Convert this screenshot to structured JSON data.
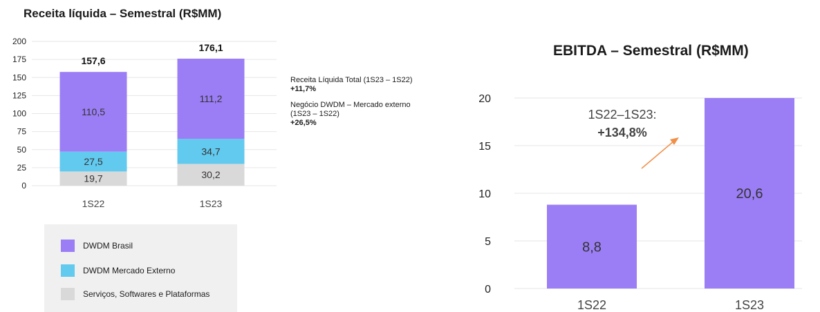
{
  "chart_data": [
    {
      "type": "bar",
      "stacked": true,
      "title": "Receita líquida – Semestral (R$MM)",
      "categories": [
        "1S22",
        "1S23"
      ],
      "series": [
        {
          "name": "Serviços, Softwares e Plataformas",
          "values": [
            19.7,
            30.2
          ],
          "labels": [
            "19,7",
            "30,2"
          ],
          "color": "#d9d9d9"
        },
        {
          "name": "DWDM Mercado Externo",
          "values": [
            27.5,
            34.7
          ],
          "labels": [
            "27,5",
            "34,7"
          ],
          "color": "#62c9ef"
        },
        {
          "name": "DWDM Brasil",
          "values": [
            110.5,
            111.2
          ],
          "labels": [
            "110,5",
            "111,2"
          ],
          "color": "#9b7ef5"
        }
      ],
      "totals": [
        157.6,
        176.1
      ],
      "total_labels": [
        "157,6",
        "176,1"
      ],
      "ylim": [
        0,
        200
      ],
      "yticks": [
        0,
        25,
        50,
        75,
        100,
        125,
        150,
        175,
        200
      ],
      "grid": true,
      "legend_order": [
        "DWDM Brasil",
        "DWDM Mercado Externo",
        "Serviços, Softwares e Plataformas"
      ]
    },
    {
      "type": "bar",
      "title": "EBITDA – Semestral (R$MM)",
      "categories": [
        "1S22",
        "1S23"
      ],
      "values": [
        8.8,
        20.6
      ],
      "labels": [
        "8,8",
        "20,6"
      ],
      "color": "#9b7ef5",
      "ylim": [
        0,
        20
      ],
      "yticks": [
        0,
        5,
        10,
        15,
        20
      ],
      "grid": true,
      "annotation": {
        "line1": "1S22–1S23:",
        "line2": "+134,8%",
        "arrow_color": "#f0904a"
      }
    }
  ],
  "notes": {
    "line1": "Receita Líquida Total (1S23 – 1S22)",
    "line1_value": "+11,7%",
    "line2": "Negócio DWDM – Mercado externo",
    "line2b": "(1S23 – 1S22)",
    "line2_value": "+26,5%"
  }
}
